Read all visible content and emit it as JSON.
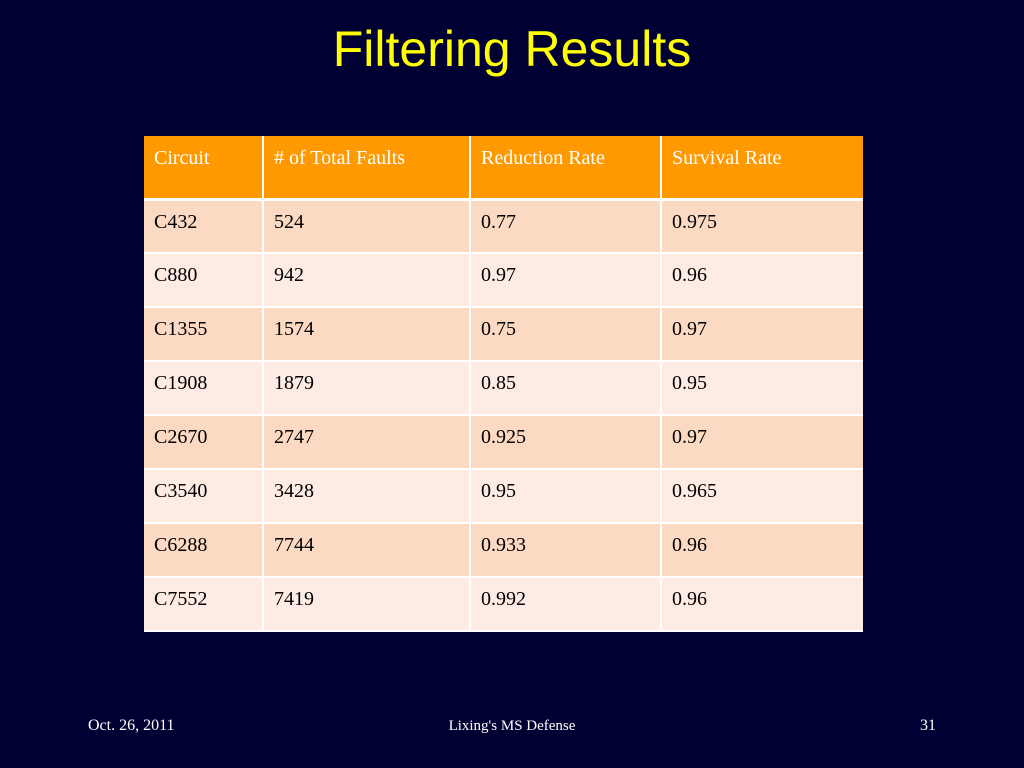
{
  "slide": {
    "title": "Filtering Results"
  },
  "table": {
    "headers": [
      "Circuit",
      "# of Total Faults",
      "Reduction Rate",
      "Survival Rate"
    ],
    "rows": [
      [
        "C432",
        "524",
        "0.77",
        "0.975"
      ],
      [
        "C880",
        "942",
        "0.97",
        "0.96"
      ],
      [
        "C1355",
        "1574",
        "0.75",
        "0.97"
      ],
      [
        "C1908",
        "1879",
        "0.85",
        "0.95"
      ],
      [
        "C2670",
        "2747",
        "0.925",
        "0.97"
      ],
      [
        "C3540",
        "3428",
        "0.95",
        "0.965"
      ],
      [
        "C6288",
        "7744",
        "0.933",
        "0.96"
      ],
      [
        "C7552",
        "7419",
        "0.992",
        "0.96"
      ]
    ]
  },
  "footer": {
    "date": "Oct. 26, 2011",
    "center": "Lixing's MS Defense",
    "page": "31"
  },
  "colors": {
    "background": "#000033",
    "title": "#ffff00",
    "header_fill": "#ff9900",
    "row_odd": "#fcd9c2",
    "row_even": "#fdebe4"
  }
}
